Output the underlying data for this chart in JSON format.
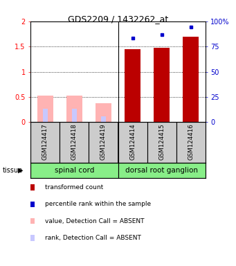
{
  "title": "GDS2209 / 1432262_at",
  "samples": [
    "GSM124417",
    "GSM124418",
    "GSM124419",
    "GSM124414",
    "GSM124415",
    "GSM124416"
  ],
  "tissue_labels": [
    "spinal cord",
    "dorsal root ganglion"
  ],
  "red_values": [
    0.0,
    0.0,
    0.0,
    1.45,
    1.47,
    1.7
  ],
  "blue_pct": [
    0.0,
    0.0,
    0.0,
    83.0,
    86.5,
    94.0
  ],
  "pink_values": [
    0.52,
    0.52,
    0.38,
    0.0,
    0.0,
    0.0
  ],
  "lightblue_values": [
    0.27,
    0.27,
    0.12,
    0.0,
    0.0,
    0.0
  ],
  "absent_mask": [
    true,
    true,
    true,
    false,
    false,
    false
  ],
  "ylim_left": [
    0,
    2
  ],
  "ylim_right": [
    0,
    100
  ],
  "yticks_left": [
    0,
    0.5,
    1.0,
    1.5,
    2.0
  ],
  "ytick_labels_left": [
    "0",
    "0.5",
    "1",
    "1.5",
    "2"
  ],
  "yticks_right": [
    0,
    25,
    50,
    75,
    100
  ],
  "yticklabels_right": [
    "0",
    "25",
    "50",
    "75",
    "100%"
  ],
  "red_color": "#bb0000",
  "blue_color": "#0000cc",
  "pink_color": "#ffb3b3",
  "lightblue_color": "#c8c8ff",
  "tissue_bg_color": "#88ee88",
  "sample_bg_color": "#cccccc",
  "legend_items": [
    {
      "color": "#bb0000",
      "label": "transformed count"
    },
    {
      "color": "#0000cc",
      "label": "percentile rank within the sample"
    },
    {
      "color": "#ffb3b3",
      "label": "value, Detection Call = ABSENT"
    },
    {
      "color": "#c8c8ff",
      "label": "rank, Detection Call = ABSENT"
    }
  ]
}
